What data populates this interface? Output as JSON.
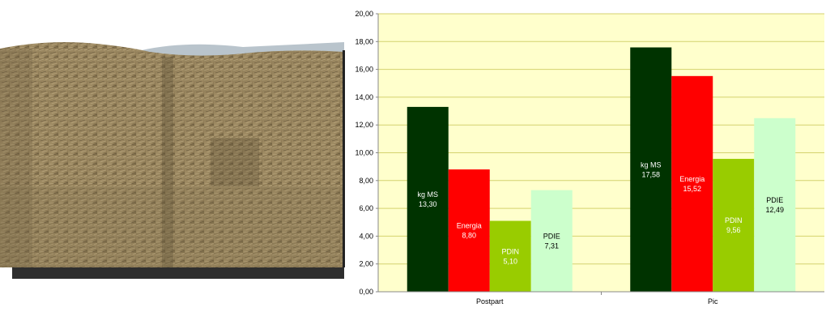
{
  "chart_data": {
    "type": "bar",
    "categories": [
      "Postpart",
      "Pic"
    ],
    "series": [
      {
        "name": "kg MS",
        "values": [
          13.3,
          17.58
        ],
        "color": "#003300",
        "label_color": "#ffffff"
      },
      {
        "name": "Energia",
        "values": [
          8.8,
          15.52
        ],
        "color": "#ff0000",
        "label_color": "#ffffff"
      },
      {
        "name": "PDIN",
        "values": [
          5.1,
          9.56
        ],
        "color": "#99cc00",
        "label_color": "#ffffff"
      },
      {
        "name": "PDIE",
        "values": [
          7.31,
          12.49
        ],
        "color": "#ccffcc",
        "label_color": "#000000"
      }
    ],
    "title": "",
    "xlabel": "",
    "ylabel": "",
    "ylim": [
      0,
      20
    ],
    "ytick_step": 2,
    "grid": true,
    "plot_background": "#ffffcc",
    "gridline_color": "#d4d26e",
    "decimal_separator": ","
  },
  "photo": {
    "description_icon": "hay-silage-pile-photo"
  }
}
